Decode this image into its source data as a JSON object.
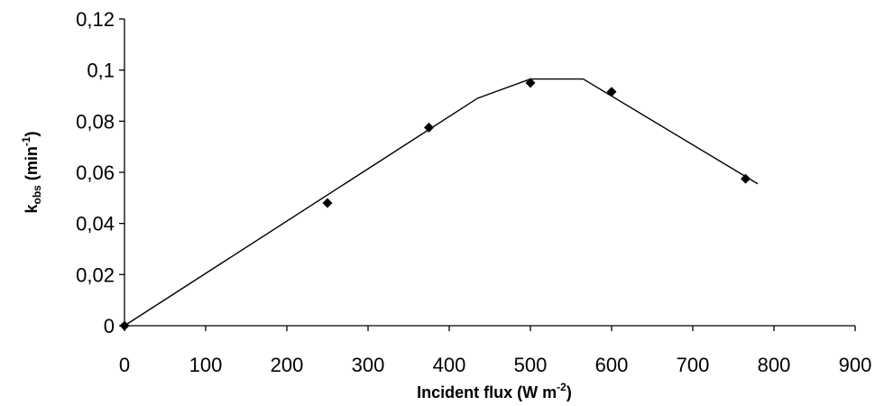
{
  "chart_data": {
    "type": "scatter",
    "title": "",
    "xlabel": "Incident flux (W m-2)",
    "xlabel_parts": {
      "main": "Incident flux (W m",
      "sup": "-2",
      "end": ")"
    },
    "ylabel": "kobs (min-1)",
    "ylabel_parts": {
      "k": "k",
      "sub": "obs",
      "mid": " (min",
      "sup": "-1",
      "end": ")"
    },
    "xlim": [
      0,
      900
    ],
    "ylim": [
      0,
      0.12
    ],
    "x_ticks": [
      0,
      100,
      200,
      300,
      400,
      500,
      600,
      700,
      800,
      900
    ],
    "x_tick_labels": [
      "0",
      "100",
      "200",
      "300",
      "400",
      "500",
      "600",
      "700",
      "800",
      "900"
    ],
    "y_ticks": [
      0,
      0.02,
      0.04,
      0.06,
      0.08,
      0.1,
      0.12
    ],
    "y_tick_labels": [
      "0",
      "0,02",
      "0,04",
      "0,06",
      "0,08",
      "0,1",
      "0,12"
    ],
    "grid": false,
    "legend": "none",
    "series": [
      {
        "kind": "points",
        "marker": "diamond",
        "color": "#000000",
        "x": [
          0,
          250,
          375,
          500,
          600,
          765
        ],
        "y": [
          0,
          0.048,
          0.0775,
          0.095,
          0.0915,
          0.0575
        ]
      },
      {
        "kind": "line",
        "color": "#000000",
        "x": [
          0,
          435,
          500,
          565,
          780
        ],
        "y": [
          0,
          0.089,
          0.0965,
          0.0965,
          0.0555
        ]
      }
    ]
  }
}
